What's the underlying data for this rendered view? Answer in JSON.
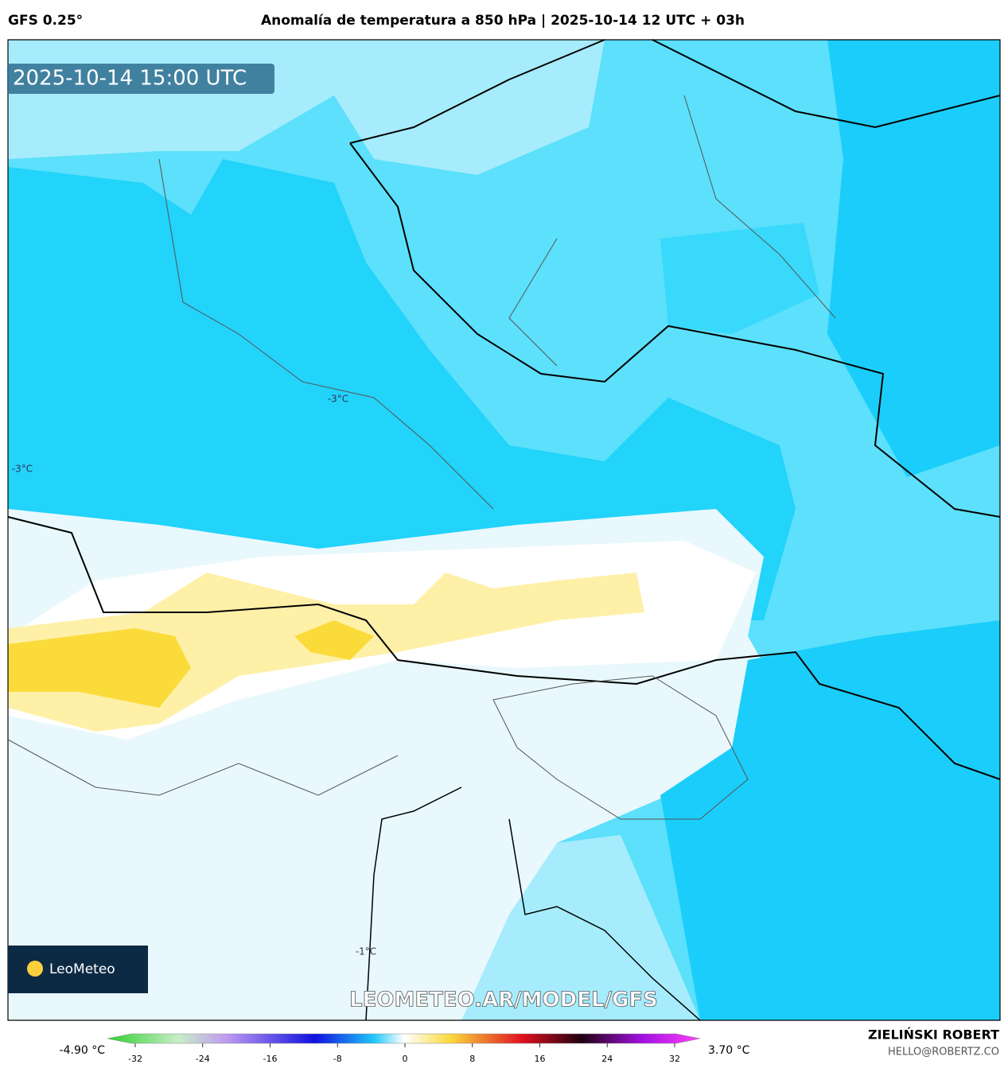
{
  "header": {
    "model": "GFS 0.25°",
    "title": "Anomalía de temperatura a 850 hPa | 2025-10-14 12 UTC + 03h"
  },
  "map": {
    "timestamp": "2025-10-14 15:00 UTC",
    "contour_labels": [
      "-3°C",
      "-3°C",
      "-1°C"
    ],
    "watermark": "LEOMETEO.AR/MODEL/GFS",
    "logo": "LeoMeteo"
  },
  "legend": {
    "min_label": "-4.90 °C",
    "max_label": "3.70 °C",
    "ticks": [
      -32,
      -24,
      -16,
      -8,
      0,
      8,
      16,
      24,
      32
    ]
  },
  "footer": {
    "author": "ZIELIŃSKI ROBERT",
    "contact": "HELLO@ROBERTZ.CO"
  }
}
